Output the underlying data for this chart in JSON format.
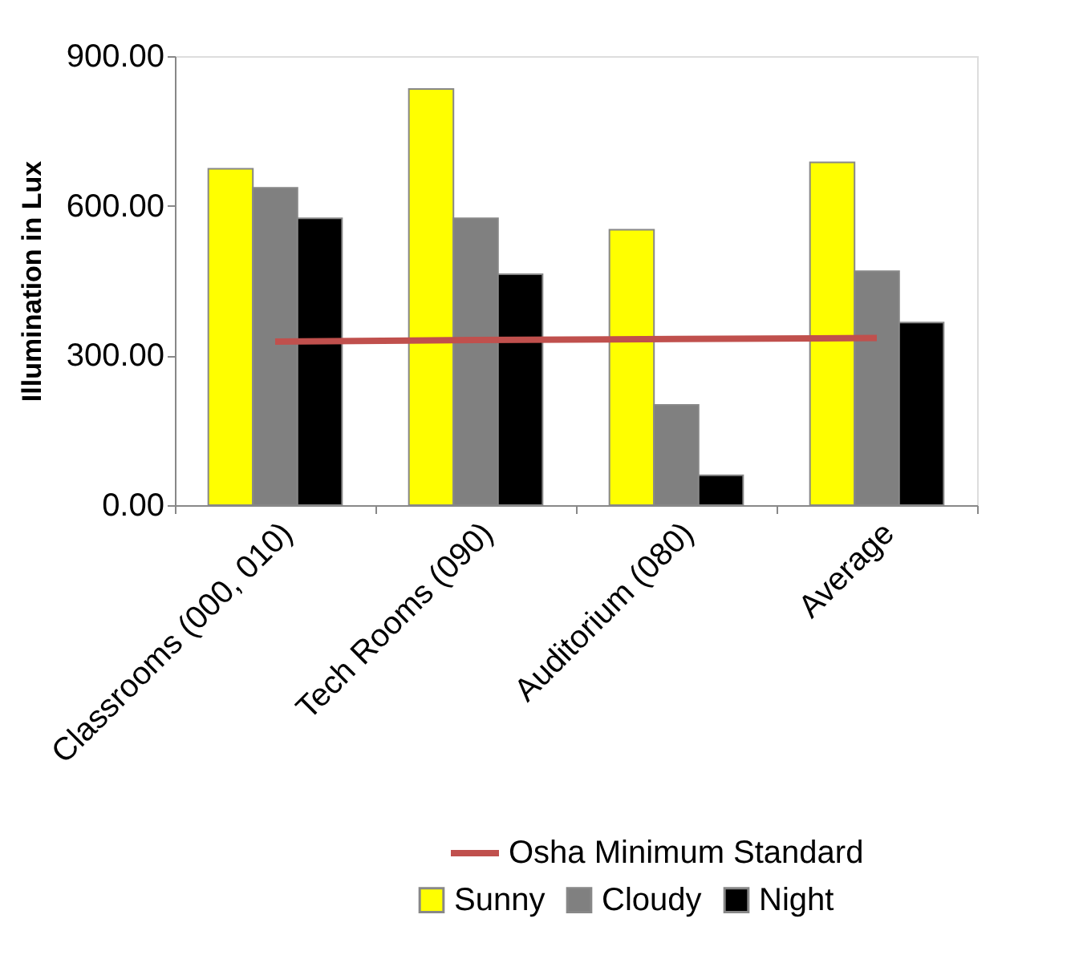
{
  "chart_data": {
    "type": "bar",
    "ylabel": "Illumination in Lux",
    "categories": [
      "Classrooms (000, 010)",
      "Tech Rooms (090)",
      "Auditorium (080)",
      "Average"
    ],
    "series": [
      {
        "name": "Sunny",
        "color": "#ffff00",
        "values": [
          674,
          834,
          552,
          687
        ]
      },
      {
        "name": "Cloudy",
        "color": "#808080",
        "values": [
          636,
          575,
          201,
          469
        ]
      },
      {
        "name": "Night",
        "color": "#000000",
        "values": [
          575,
          463,
          60,
          366
        ]
      },
      {
        "name": "Osha Minimum Standard",
        "type": "line",
        "color": "#c0504d",
        "values": [
          328,
          331,
          333,
          335
        ]
      }
    ],
    "ylim": [
      0,
      900
    ],
    "yticks": [
      {
        "value": 0,
        "label": "0.00"
      },
      {
        "value": 300,
        "label": "300.00"
      },
      {
        "value": 600,
        "label": "600.00"
      },
      {
        "value": 900,
        "label": "900.00"
      }
    ],
    "grid": false,
    "legend": "bottom"
  }
}
